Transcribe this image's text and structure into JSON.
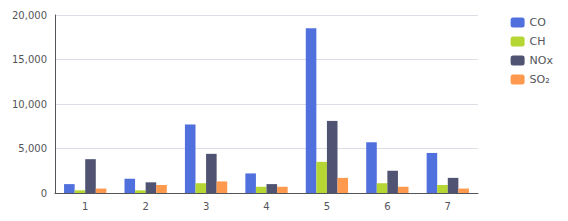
{
  "chart_data": {
    "type": "bar",
    "categories": [
      "1",
      "2",
      "3",
      "4",
      "5",
      "6",
      "7"
    ],
    "series": [
      {
        "name": "CO",
        "values": [
          1000,
          1600,
          7700,
          2200,
          18500,
          5700,
          4500
        ]
      },
      {
        "name": "CH",
        "values": [
          300,
          300,
          1100,
          700,
          3500,
          1100,
          900
        ]
      },
      {
        "name": "NOx",
        "values": [
          3800,
          1200,
          4400,
          1000,
          8100,
          2500,
          1700
        ]
      },
      {
        "name": "SO₂",
        "values": [
          500,
          900,
          1300,
          700,
          1700,
          700,
          500
        ]
      }
    ],
    "ylim": [
      0,
      20000
    ],
    "yticks": [
      0,
      5000,
      10000,
      15000,
      20000
    ],
    "grid": true,
    "legend": "upper right"
  }
}
